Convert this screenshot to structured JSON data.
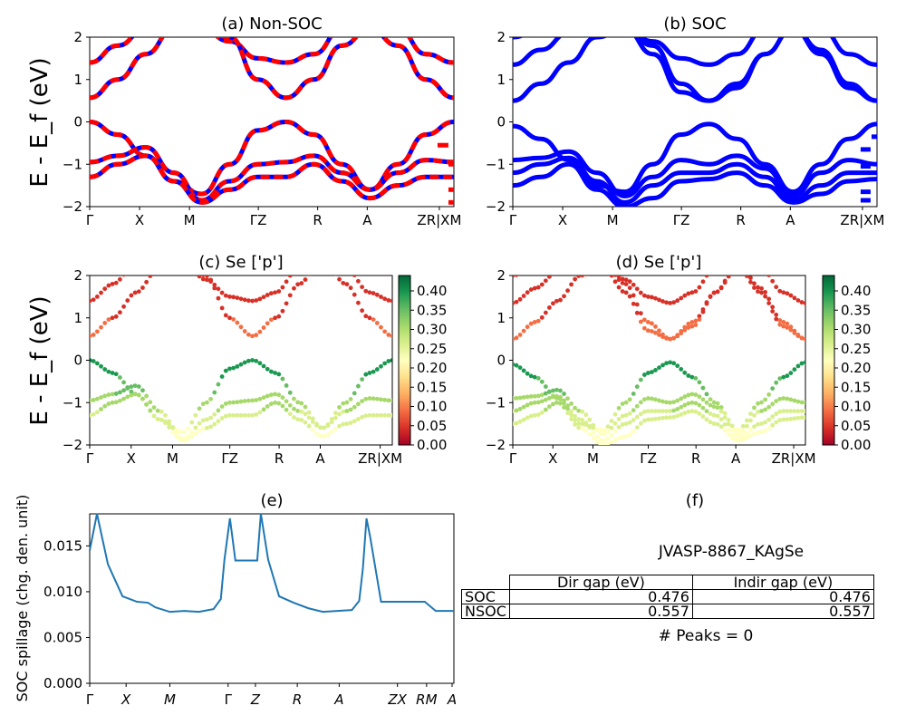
{
  "figure": {
    "ylabel_band": "E - E_f (eV)",
    "kpath_labels": [
      "Γ",
      "X",
      "M",
      "ΓZ",
      "R",
      "A",
      "ZR|XM"
    ],
    "kpath_labels_bottom": [
      "Γ",
      "X",
      "M",
      "Γ",
      "Z",
      "R",
      "A",
      "ZX",
      "RM",
      "A"
    ]
  },
  "panels": {
    "a": {
      "title": "(a) Non-SOC"
    },
    "b": {
      "title": "(b) SOC"
    },
    "c": {
      "title": "(c)  Se ['p']"
    },
    "d": {
      "title": "(d) Se ['p']"
    },
    "e": {
      "title": "(e)",
      "ylabel": "SOC spillage (chg. den. unit)"
    },
    "f": {
      "title": "(f)",
      "material": "JVASP-8867_KAgSe",
      "peaks": "# Peaks = 0"
    }
  },
  "colorbar": {
    "ticks": [
      "0.00",
      "0.05",
      "0.10",
      "0.15",
      "0.20",
      "0.25",
      "0.30",
      "0.35",
      "0.40"
    ]
  },
  "gap_table": {
    "headers": [
      "Dir gap (eV)",
      "Indir gap (eV)"
    ],
    "rows": [
      {
        "label": "SOC",
        "dir": "0.476",
        "indir": "0.476"
      },
      {
        "label": "NSOC",
        "dir": "0.557",
        "indir": "0.557"
      }
    ]
  },
  "chart_data": [
    {
      "type": "line",
      "panel": "a",
      "title": "(a) Non-SOC",
      "ylabel": "E - E_f (eV)",
      "ylim": [
        -2,
        2
      ],
      "yticks": [
        -2,
        -1,
        0,
        1,
        2
      ],
      "xticks": [
        "Γ",
        "X",
        "M",
        "ΓZ",
        "R",
        "A",
        "ZR|XM"
      ],
      "series": [
        {
          "color": "#ff0000",
          "style": "dashed-over-blue",
          "bands": [
            [
              1.4,
              1.8,
              2.3,
              2.6,
              2.3,
              1.9,
              1.5,
              1.4,
              1.6,
              2.2,
              2.6,
              2.2,
              1.6,
              1.4
            ],
            [
              0.57,
              1.0,
              1.6,
              2.2,
              2.4,
              2.0,
              1.0,
              0.57,
              1.0,
              1.8,
              2.4,
              1.8,
              1.0,
              0.57
            ],
            [
              0.0,
              -0.3,
              -0.8,
              -1.4,
              -1.7,
              -1.0,
              -0.2,
              0.0,
              -0.3,
              -1.0,
              -1.6,
              -1.0,
              -0.3,
              0.0
            ],
            [
              -0.95,
              -0.8,
              -0.6,
              -1.2,
              -1.85,
              -1.4,
              -1.0,
              -0.95,
              -0.8,
              -1.2,
              -1.6,
              -1.2,
              -0.9,
              -0.95
            ],
            [
              -1.3,
              -1.0,
              -0.8,
              -1.4,
              -1.9,
              -1.6,
              -1.3,
              -1.3,
              -1.0,
              -1.4,
              -1.8,
              -1.5,
              -1.3,
              -1.3
            ]
          ]
        }
      ]
    },
    {
      "type": "line",
      "panel": "b",
      "title": "(b) SOC",
      "ylim": [
        -2,
        2
      ],
      "yticks": [
        -2,
        -1,
        0,
        1,
        2
      ],
      "xticks": [
        "Γ",
        "X",
        "M",
        "ΓZ",
        "R",
        "A",
        "ZR|XM"
      ],
      "series": [
        {
          "color": "#0000ff",
          "bands": [
            [
              2.0,
              2.2,
              2.5,
              2.6,
              2.3,
              1.9,
              1.5,
              1.35,
              1.6,
              2.2,
              2.6,
              2.2,
              1.6,
              1.35
            ],
            [
              1.35,
              1.7,
              2.1,
              2.5,
              2.3,
              1.8,
              0.9,
              0.5,
              0.9,
              1.6,
              2.3,
              1.7,
              0.9,
              0.5
            ],
            [
              0.5,
              0.9,
              1.4,
              2.0,
              2.2,
              1.6,
              0.7,
              0.5,
              0.8,
              1.6,
              2.2,
              1.6,
              0.8,
              0.5
            ],
            [
              -0.1,
              -0.4,
              -0.9,
              -1.5,
              -1.65,
              -1.0,
              -0.3,
              -0.05,
              -0.4,
              -1.0,
              -1.65,
              -1.0,
              -0.4,
              -0.05
            ],
            [
              -0.9,
              -0.85,
              -0.7,
              -1.2,
              -1.75,
              -1.3,
              -0.9,
              -1.0,
              -0.8,
              -1.1,
              -1.75,
              -1.2,
              -0.9,
              -1.0
            ],
            [
              -1.2,
              -1.0,
              -0.85,
              -1.4,
              -1.9,
              -1.5,
              -1.2,
              -1.2,
              -1.0,
              -1.3,
              -1.85,
              -1.5,
              -1.2,
              -1.2
            ],
            [
              -1.5,
              -1.3,
              -1.0,
              -1.6,
              -2.0,
              -1.8,
              -1.4,
              -1.35,
              -1.2,
              -1.5,
              -1.9,
              -1.7,
              -1.4,
              -1.35
            ]
          ]
        }
      ]
    },
    {
      "type": "scatter",
      "panel": "c",
      "title": "(c)  Se ['p']",
      "ylim": [
        -2,
        2
      ],
      "colorbar_range": [
        0.0,
        0.44
      ],
      "colormap": "RdYlGn"
    },
    {
      "type": "scatter",
      "panel": "d",
      "title": "(d) Se ['p']",
      "ylim": [
        -2,
        2
      ],
      "colorbar_range": [
        0.0,
        0.44
      ],
      "colormap": "RdYlGn"
    },
    {
      "type": "line",
      "panel": "e",
      "title": "(e)",
      "ylabel": "SOC spillage (chg. den. unit)",
      "ylim": [
        0.0,
        0.0185
      ],
      "yticks": [
        "0.000",
        "0.005",
        "0.010",
        "0.015"
      ],
      "xticks": [
        "Γ",
        "X",
        "M",
        "Γ",
        "Z",
        "R",
        "A",
        "ZX",
        "RM",
        "A"
      ],
      "x": [
        0,
        0.02,
        0.05,
        0.09,
        0.13,
        0.16,
        0.18,
        0.22,
        0.26,
        0.3,
        0.34,
        0.36,
        0.37,
        0.385,
        0.39,
        0.4,
        0.41,
        0.44,
        0.46,
        0.47,
        0.49,
        0.52,
        0.56,
        0.6,
        0.64,
        0.68,
        0.72,
        0.74,
        0.75,
        0.76,
        0.77,
        0.8,
        0.84,
        0.88,
        0.92,
        0.95,
        1.0
      ],
      "values": [
        0.0145,
        0.0185,
        0.013,
        0.0095,
        0.0089,
        0.0088,
        0.0083,
        0.0078,
        0.0079,
        0.0078,
        0.0081,
        0.0092,
        0.0135,
        0.018,
        0.0165,
        0.0134,
        0.0134,
        0.0134,
        0.0134,
        0.0185,
        0.0135,
        0.0095,
        0.0088,
        0.0082,
        0.0078,
        0.0079,
        0.008,
        0.009,
        0.0125,
        0.018,
        0.016,
        0.0089,
        0.0089,
        0.0089,
        0.0089,
        0.0079,
        0.0079
      ],
      "color": "#1f77b4"
    }
  ]
}
